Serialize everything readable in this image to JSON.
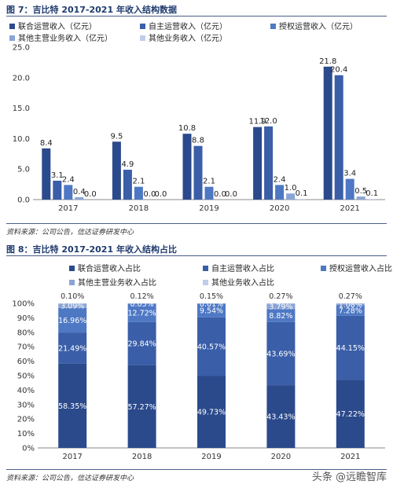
{
  "figure7": {
    "title": "图 7：吉比特 2017-2021 年收入结构数据",
    "source": "资料来源：公司公告，信达证券研发中心"
  },
  "figure8": {
    "title": "图 8：吉比特 2017-2021 年收入结构占比",
    "source": "资料来源：公司公告，信达证券研发中心"
  },
  "watermark": "头条 @远瞻智库",
  "colors": {
    "s1": "#2b4a8c",
    "s2": "#3a5ea8",
    "s3": "#4e78c4",
    "s4": "#8aa4d6",
    "s5": "#c0cde8",
    "title": "#1f3b6e"
  },
  "chart_data": [
    {
      "type": "bar",
      "categories": [
        "2017",
        "2018",
        "2019",
        "2020",
        "2021"
      ],
      "series": [
        {
          "name": "联合运营收入（亿元）",
          "values": [
            8.4,
            9.5,
            10.8,
            11.9,
            21.8
          ]
        },
        {
          "name": "自主运营收入（亿元）",
          "values": [
            3.1,
            4.9,
            8.8,
            12.0,
            20.4
          ]
        },
        {
          "name": "授权运营收入（亿元）",
          "values": [
            2.4,
            2.1,
            2.1,
            2.4,
            3.4
          ]
        },
        {
          "name": "其他主营业务收入（亿元）",
          "values": [
            0.4,
            0.0,
            0.0,
            1.0,
            0.5
          ]
        },
        {
          "name": "其他业务收入（亿元）",
          "values": [
            0.0,
            0.0,
            0.0,
            0.1,
            0.1
          ]
        }
      ],
      "value_labels": [
        [
          "8.4",
          "9.5",
          "10.8",
          "11.9",
          "21.8"
        ],
        [
          "3.1",
          "4.9",
          "8.8",
          "12.0",
          "20.4"
        ],
        [
          "2.4",
          "2.1",
          "2.1",
          "2.4",
          "3.4"
        ],
        [
          "0.4",
          "0.0",
          "0.0",
          "1.0",
          "0.5"
        ],
        [
          "0.0",
          "0.0",
          "0.0",
          "0.1",
          "0.1"
        ]
      ],
      "ylim": [
        0,
        25
      ],
      "yticks": [
        "0.0",
        "5.0",
        "10.0",
        "15.0",
        "20.0",
        "25.0"
      ],
      "xlabel": "",
      "ylabel": "",
      "legend": "top"
    },
    {
      "type": "bar",
      "stacked": true,
      "categories": [
        "2017",
        "2018",
        "2019",
        "2020",
        "2021"
      ],
      "series": [
        {
          "name": "联合运营收入占比",
          "values": [
            58.35,
            57.27,
            49.73,
            43.43,
            47.22
          ]
        },
        {
          "name": "自主运营收入占比",
          "values": [
            21.49,
            29.84,
            40.57,
            43.69,
            44.15
          ]
        },
        {
          "name": "授权运营收入占比",
          "values": [
            16.96,
            12.72,
            9.54,
            8.82,
            7.28
          ]
        },
        {
          "name": "其他主营业务收入占比",
          "values": [
            3.09,
            0.05,
            0.01,
            3.79,
            1.08
          ]
        },
        {
          "name": "其他业务收入占比",
          "values": [
            0.1,
            0.12,
            0.15,
            0.27,
            0.27
          ]
        }
      ],
      "value_labels": [
        [
          "58.35%",
          "57.27%",
          "49.73%",
          "43.43%",
          "47.22%"
        ],
        [
          "21.49%",
          "29.84%",
          "40.57%",
          "43.69%",
          "44.15%"
        ],
        [
          "16.96%",
          "12.72%",
          "9.54%",
          "8.82%",
          "7.28%"
        ],
        [
          "3.09%",
          "0.05%",
          "0.01%",
          "3.79%",
          "1.08%"
        ],
        [
          "0.10%",
          "0.12%",
          "0.15%",
          "0.27%",
          "0.27%"
        ]
      ],
      "ylim": [
        0,
        100
      ],
      "yticks": [
        "0%",
        "10%",
        "20%",
        "30%",
        "40%",
        "50%",
        "60%",
        "70%",
        "80%",
        "90%",
        "100%"
      ],
      "xlabel": "",
      "ylabel": "",
      "legend": "top"
    }
  ]
}
